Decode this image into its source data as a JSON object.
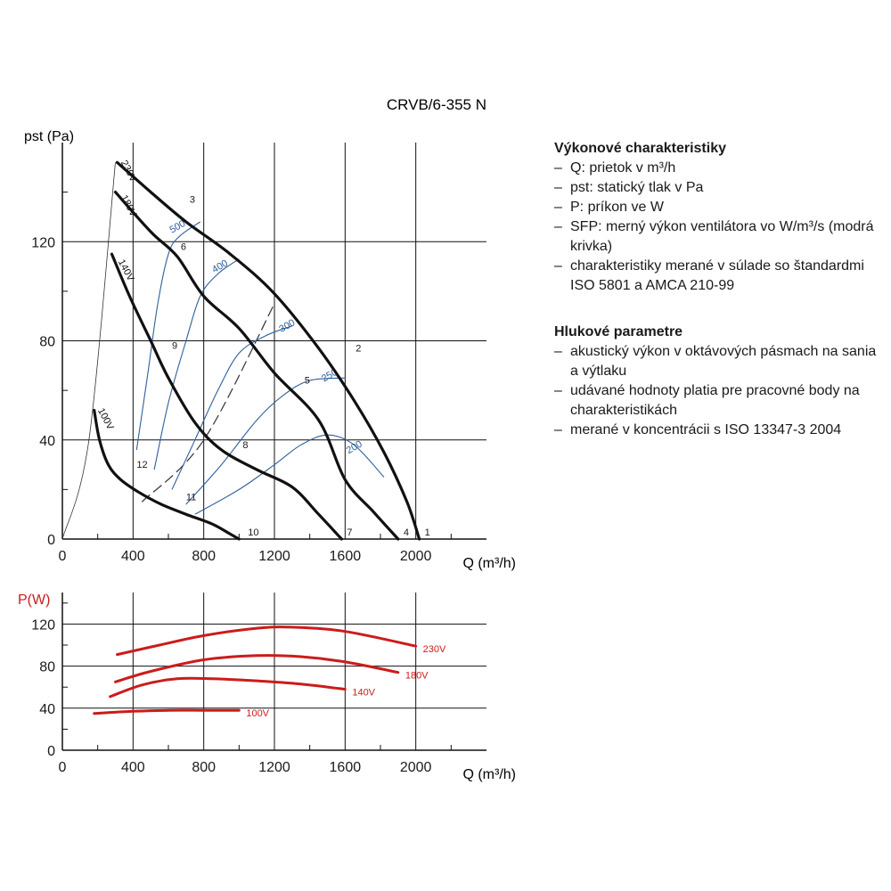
{
  "chart_data": [
    {
      "type": "line",
      "title": "CRVB/6-355 N",
      "xlabel": "Q (m³/h)",
      "ylabel": "pst (Pa)",
      "xlim": [
        0,
        2400
      ],
      "ylim": [
        0,
        160
      ],
      "xticks": [
        0,
        400,
        800,
        1200,
        1600,
        2000
      ],
      "yticks": [
        0,
        40,
        80,
        120
      ],
      "grid": true,
      "series": [
        {
          "name": "230V",
          "label_at": [
            330,
            152
          ],
          "points": [
            [
              310,
              152
            ],
            [
              500,
              140
            ],
            [
              700,
              128
            ],
            [
              950,
              115
            ],
            [
              1200,
              99
            ],
            [
              1450,
              77
            ],
            [
              1650,
              56
            ],
            [
              1820,
              35
            ],
            [
              1950,
              15
            ],
            [
              2020,
              0
            ]
          ]
        },
        {
          "name": "180V",
          "label_at": [
            330,
            138
          ],
          "points": [
            [
              300,
              140
            ],
            [
              500,
              124
            ],
            [
              650,
              114
            ],
            [
              800,
              98
            ],
            [
              1000,
              85
            ],
            [
              1200,
              67
            ],
            [
              1450,
              48
            ],
            [
              1600,
              24
            ],
            [
              1760,
              11
            ],
            [
              1900,
              0
            ]
          ]
        },
        {
          "name": "140V",
          "label_at": [
            315,
            112
          ],
          "points": [
            [
              280,
              115
            ],
            [
              380,
              98
            ],
            [
              500,
              80
            ],
            [
              600,
              65
            ],
            [
              750,
              47
            ],
            [
              900,
              36
            ],
            [
              1100,
              28
            ],
            [
              1300,
              21
            ],
            [
              1450,
              10
            ],
            [
              1580,
              0
            ]
          ]
        },
        {
          "name": "100V",
          "label_at": [
            200,
            52
          ],
          "points": [
            [
              180,
              52
            ],
            [
              210,
              40
            ],
            [
              260,
              30
            ],
            [
              330,
              24
            ],
            [
              430,
              19
            ],
            [
              560,
              14
            ],
            [
              700,
              10
            ],
            [
              850,
              6
            ],
            [
              950,
              2
            ],
            [
              1000,
              0
            ]
          ]
        }
      ],
      "sfp_curves": [
        {
          "name": "500",
          "label_at": [
            660,
            125
          ],
          "points": [
            [
              420,
              36
            ],
            [
              480,
              65
            ],
            [
              540,
              95
            ],
            [
              600,
              115
            ],
            [
              660,
              122
            ],
            [
              780,
              128
            ]
          ]
        },
        {
          "name": "400",
          "label_at": [
            900,
            109
          ],
          "points": [
            [
              520,
              28
            ],
            [
              600,
              55
            ],
            [
              700,
              80
            ],
            [
              780,
              98
            ],
            [
              880,
              107
            ],
            [
              1000,
              113
            ]
          ]
        },
        {
          "name": "300",
          "label_at": [
            1280,
            85
          ],
          "points": [
            [
              620,
              20
            ],
            [
              750,
              40
            ],
            [
              880,
              60
            ],
            [
              1000,
              75
            ],
            [
              1150,
              82
            ],
            [
              1300,
              86
            ]
          ]
        },
        {
          "name": "250",
          "label_at": [
            1520,
            65
          ],
          "points": [
            [
              700,
              14
            ],
            [
              900,
              30
            ],
            [
              1100,
              48
            ],
            [
              1250,
              58
            ],
            [
              1400,
              64
            ],
            [
              1600,
              65
            ]
          ]
        },
        {
          "name": "200",
          "label_at": [
            1660,
            36
          ],
          "points": [
            [
              750,
              10
            ],
            [
              1000,
              20
            ],
            [
              1200,
              30
            ],
            [
              1350,
              38
            ],
            [
              1500,
              42
            ],
            [
              1650,
              38
            ],
            [
              1820,
              25
            ]
          ]
        }
      ],
      "points": [
        {
          "label": "1",
          "x": 2020,
          "y": 0
        },
        {
          "label": "2",
          "x": 1640,
          "y": 75
        },
        {
          "label": "3",
          "x": 700,
          "y": 135
        },
        {
          "label": "4",
          "x": 1900,
          "y": 0
        },
        {
          "label": "5",
          "x": 1350,
          "y": 62
        },
        {
          "label": "6",
          "x": 650,
          "y": 116
        },
        {
          "label": "7",
          "x": 1580,
          "y": 0
        },
        {
          "label": "8",
          "x": 1000,
          "y": 36
        },
        {
          "label": "9",
          "x": 600,
          "y": 76
        },
        {
          "label": "10",
          "x": 1020,
          "y": 0
        },
        {
          "label": "11",
          "x": 680,
          "y": 15
        },
        {
          "label": "12",
          "x": 400,
          "y": 28
        }
      ],
      "system_curves": [
        {
          "style": "thin",
          "points": [
            [
              0,
              0
            ],
            [
              150,
              40
            ],
            [
              300,
              152
            ]
          ]
        },
        {
          "style": "dashed",
          "points": [
            [
              450,
              15
            ],
            [
              800,
              40
            ],
            [
              1200,
              95
            ]
          ]
        }
      ]
    },
    {
      "type": "line",
      "xlabel": "Q (m³/h)",
      "ylabel": "P(W)",
      "xlim": [
        0,
        2400
      ],
      "ylim": [
        0,
        150
      ],
      "xticks": [
        0,
        400,
        800,
        1200,
        1600,
        2000
      ],
      "yticks": [
        0,
        40,
        80,
        120
      ],
      "grid": true,
      "series": [
        {
          "name": "230V",
          "points": [
            [
              310,
              91
            ],
            [
              550,
              100
            ],
            [
              800,
              109
            ],
            [
              1100,
              116
            ],
            [
              1300,
              117
            ],
            [
              1600,
              113
            ],
            [
              2000,
              99
            ]
          ]
        },
        {
          "name": "180V",
          "points": [
            [
              300,
              65
            ],
            [
              500,
              75
            ],
            [
              800,
              86
            ],
            [
              1100,
              90
            ],
            [
              1350,
              89
            ],
            [
              1600,
              84
            ],
            [
              1900,
              74
            ]
          ]
        },
        {
          "name": "140V",
          "points": [
            [
              270,
              51
            ],
            [
              450,
              62
            ],
            [
              650,
              68
            ],
            [
              850,
              68
            ],
            [
              1100,
              66
            ],
            [
              1350,
              63
            ],
            [
              1600,
              58
            ]
          ]
        },
        {
          "name": "100V",
          "points": [
            [
              180,
              35
            ],
            [
              400,
              37
            ],
            [
              600,
              38
            ],
            [
              800,
              38
            ],
            [
              1000,
              38
            ]
          ]
        }
      ]
    }
  ],
  "colors": {
    "fan_curve": "#111111",
    "sfp_curve": "#2e5f9e",
    "power_curve": "#cc1b1b",
    "grid": "#111111"
  },
  "info": {
    "performance": {
      "heading": "Výkonové charakteristiky",
      "items": [
        "Q: prietok v m³/h",
        "pst: statický tlak v Pa",
        "P: príkon ve W",
        "SFP: merný výkon ventilátora vo W/m³/s (modrá krivka)",
        "charakteristiky merané v súlade so štandardmi ISO 5801 a AMCA 210-99"
      ]
    },
    "noise": {
      "heading": "Hlukové parametre",
      "items": [
        "akustický výkon v oktávových pásmach na sania a výtlaku",
        "udávané hodnoty platia pre pracovné body na charakteristikách",
        "merané v koncentrácii s ISO 13347-3 2004"
      ]
    }
  }
}
